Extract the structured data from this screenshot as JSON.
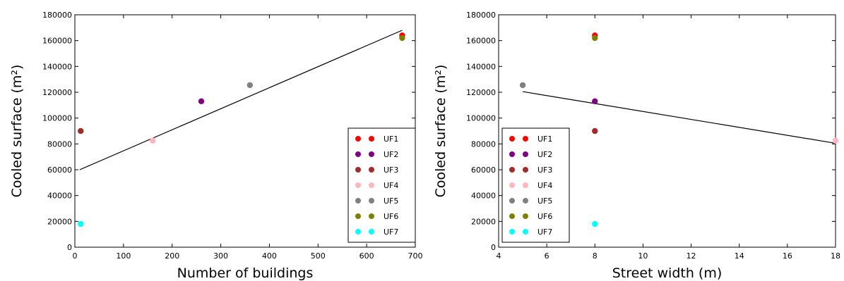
{
  "chart_data": [
    {
      "type": "scatter",
      "xlabel": "Number of buildings",
      "ylabel": "Cooled surface (m²)",
      "xlim": [
        0,
        700
      ],
      "ylim": [
        0,
        180000
      ],
      "xticks": [
        "0",
        "100",
        "200",
        "300",
        "400",
        "500",
        "600",
        "700"
      ],
      "yticks": [
        "0",
        "20000",
        "40000",
        "60000",
        "80000",
        "100000",
        "120000",
        "140000",
        "160000",
        "180000"
      ],
      "grid": false,
      "legend_position": "bottom-right",
      "series": [
        {
          "name": "UF1",
          "color": "#ff0000",
          "points": [
            [
              673,
              164000
            ]
          ]
        },
        {
          "name": "UF2",
          "color": "#800080",
          "points": [
            [
              260,
              113000
            ]
          ]
        },
        {
          "name": "UF3",
          "color": "#a52a2a",
          "points": [
            [
              12,
              90000
            ]
          ]
        },
        {
          "name": "UF4",
          "color": "#ffb6c1",
          "points": [
            [
              160,
              82500
            ]
          ]
        },
        {
          "name": "UF5",
          "color": "#808080",
          "points": [
            [
              360,
              125500
            ]
          ]
        },
        {
          "name": "UF6",
          "color": "#808000",
          "points": [
            [
              673,
              162000
            ]
          ]
        },
        {
          "name": "UF7",
          "color": "#00ffff",
          "points": [
            [
              12,
              18000
            ]
          ]
        }
      ],
      "trendline": [
        [
          10,
          60000
        ],
        [
          673,
          168000
        ]
      ]
    },
    {
      "type": "scatter",
      "xlabel": "Street width (m)",
      "ylabel": "Cooled surface (m²)",
      "xlim": [
        4,
        18
      ],
      "ylim": [
        0,
        180000
      ],
      "xticks": [
        "4",
        "6",
        "8",
        "10",
        "12",
        "14",
        "16",
        "18"
      ],
      "yticks": [
        "0",
        "20000",
        "40000",
        "60000",
        "80000",
        "100000",
        "120000",
        "140000",
        "160000",
        "180000"
      ],
      "grid": false,
      "legend_position": "bottom-left",
      "series": [
        {
          "name": "UF1",
          "color": "#ff0000",
          "points": [
            [
              8,
              164000
            ]
          ]
        },
        {
          "name": "UF2",
          "color": "#800080",
          "points": [
            [
              8,
              113000
            ]
          ]
        },
        {
          "name": "UF3",
          "color": "#a52a2a",
          "points": [
            [
              8,
              90000
            ]
          ]
        },
        {
          "name": "UF4",
          "color": "#ffb6c1",
          "points": [
            [
              18,
              82500
            ]
          ]
        },
        {
          "name": "UF5",
          "color": "#808080",
          "points": [
            [
              5,
              125500
            ]
          ]
        },
        {
          "name": "UF6",
          "color": "#808000",
          "points": [
            [
              8,
              162000
            ]
          ]
        },
        {
          "name": "UF7",
          "color": "#00ffff",
          "points": [
            [
              8,
              18000
            ]
          ]
        }
      ],
      "trendline": [
        [
          5,
          120500
        ],
        [
          18,
          80500
        ]
      ]
    }
  ]
}
